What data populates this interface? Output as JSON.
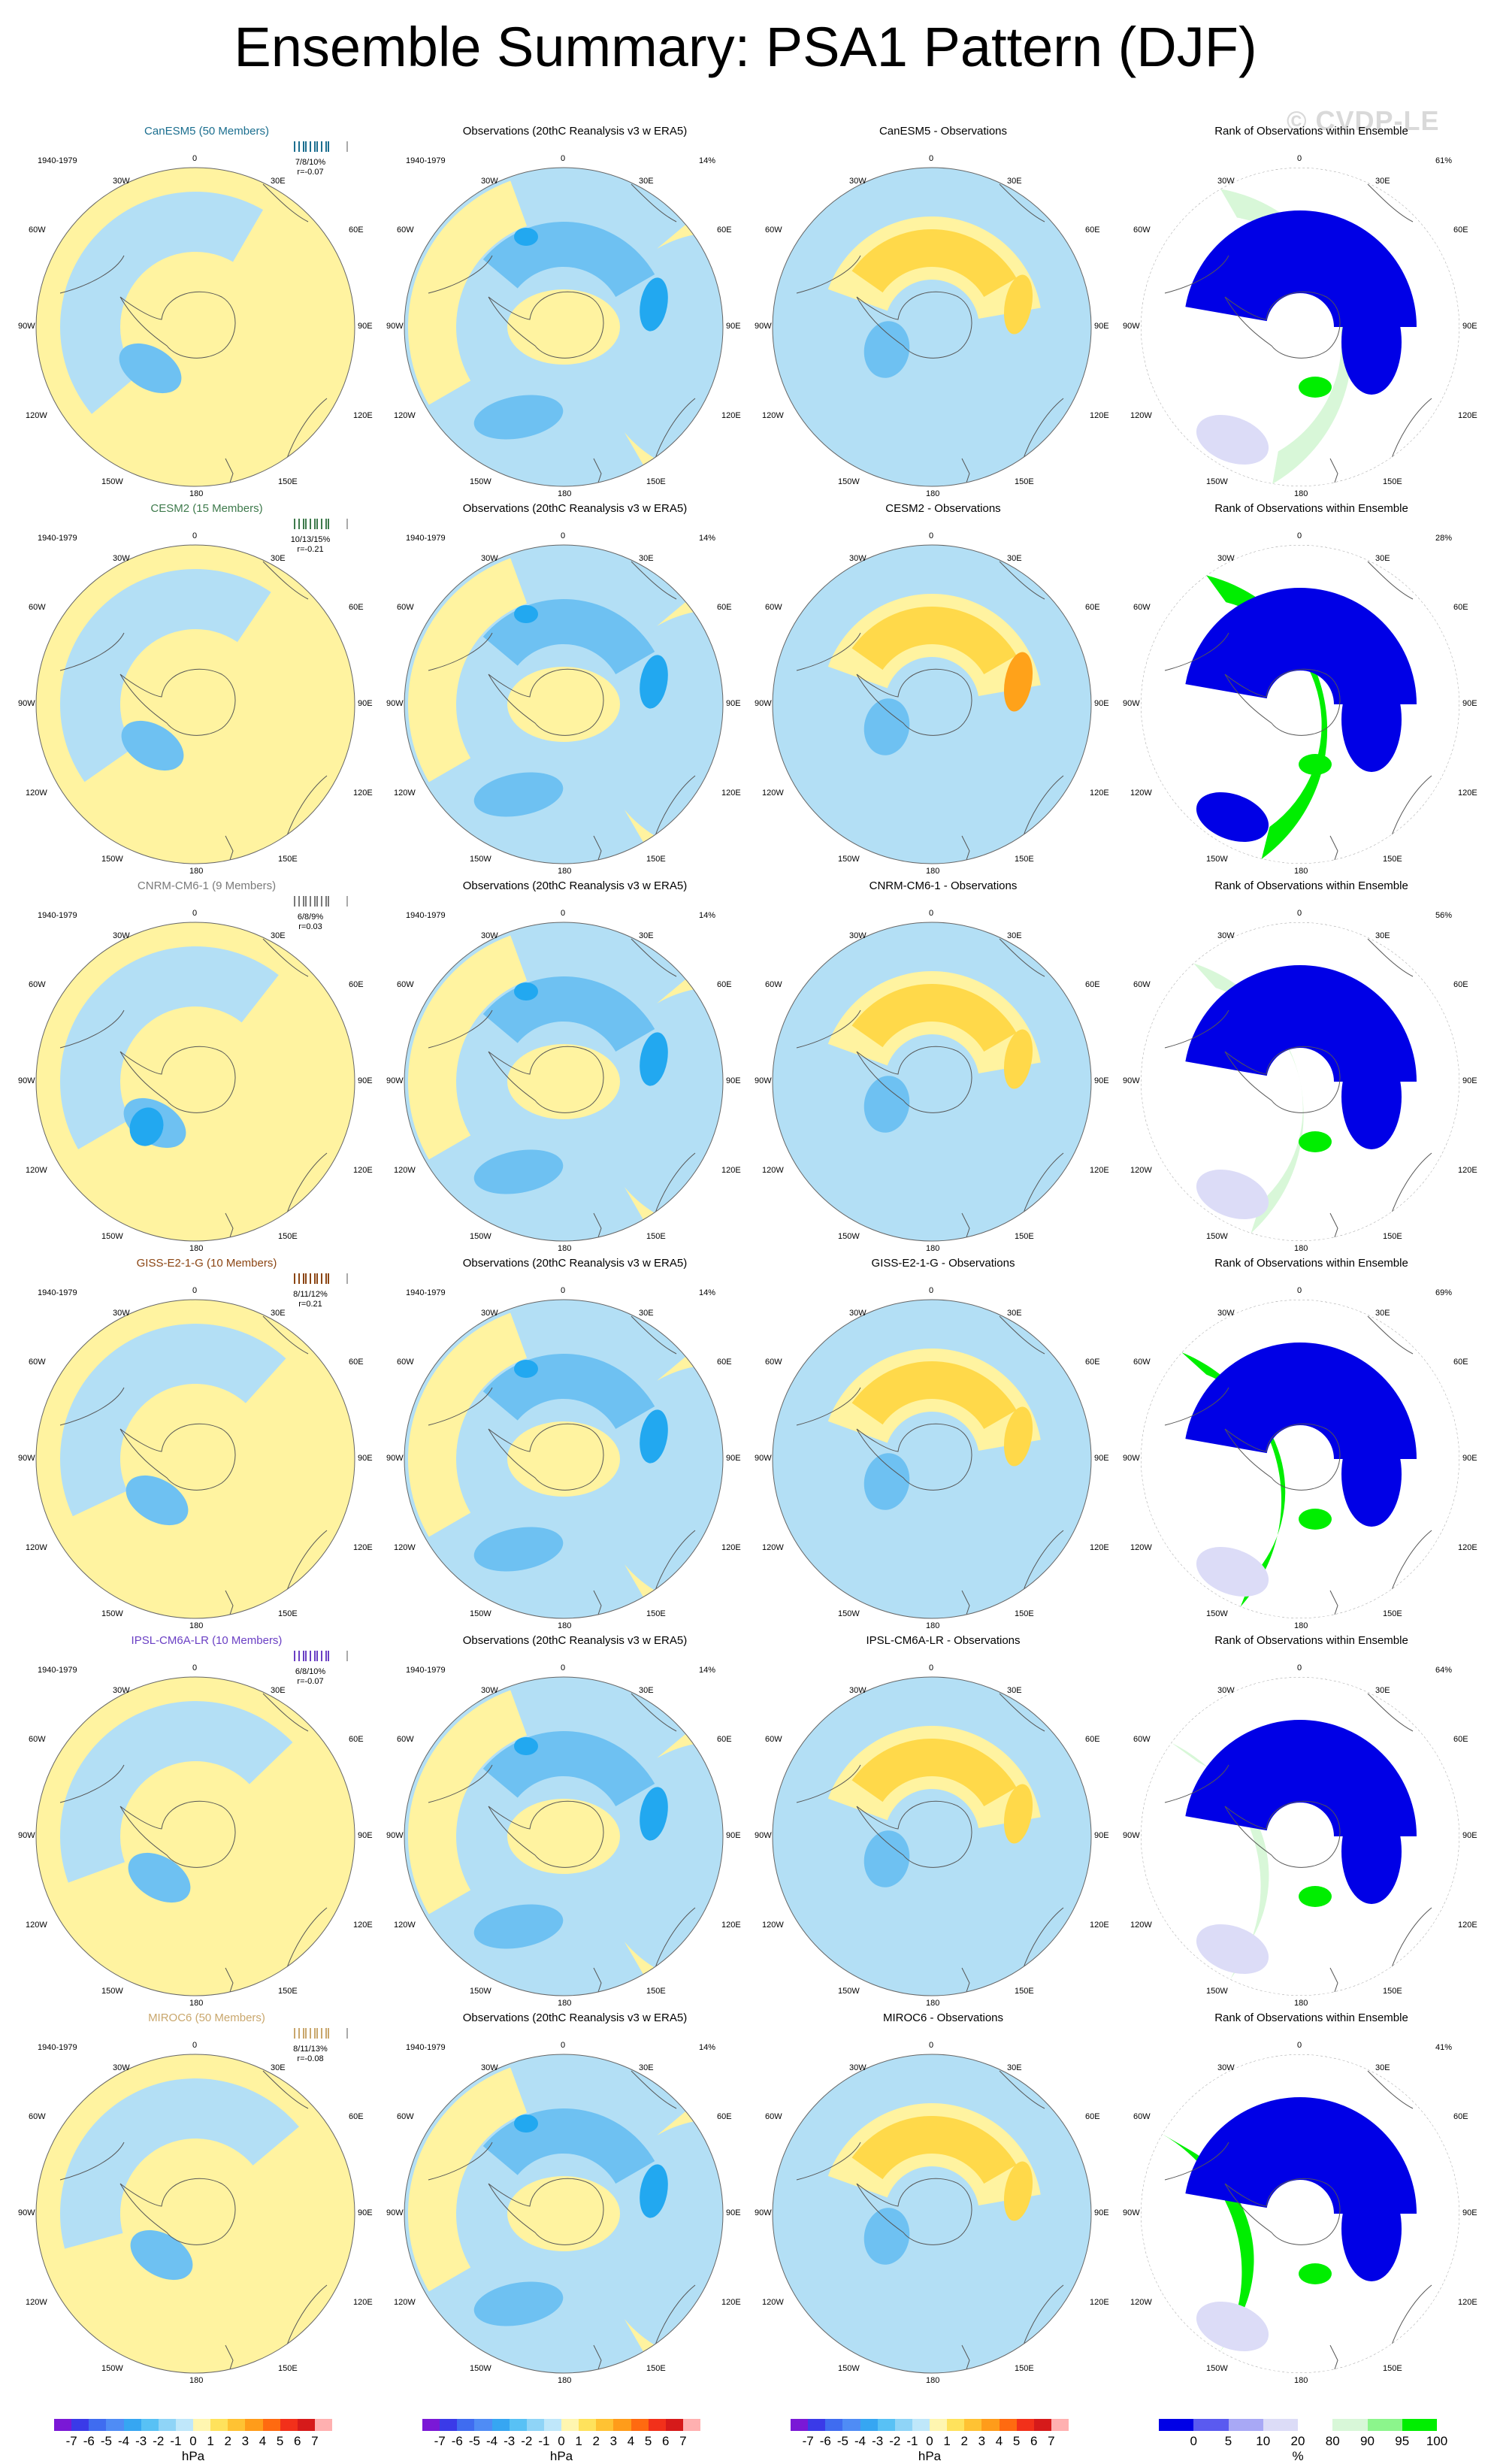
{
  "title": "Ensemble Summary: PSA1 Pattern (DJF)",
  "watermark": "© CVDP-LE",
  "period": "1940-1979",
  "lon_labels": {
    "top": "0",
    "tl": "30W",
    "tr": "30E",
    "ul": "60W",
    "ur": "60E",
    "l": "90W",
    "r": "90E",
    "ll": "120W",
    "lr": "120E",
    "bl": "150W",
    "br": "150E",
    "bottom": "180"
  },
  "obs_title": "Observations (20thC Reanalysis v3 w ERA5)",
  "obs_pct": "14%",
  "rank_title": "Rank of Observations within Ensemble",
  "colors": {
    "light_yellow": "#fff3a0",
    "yellow": "#ffd94a",
    "orange": "#ffa21a",
    "light_blue": "#b3dff5",
    "blue": "#6ec1f2",
    "deep_blue": "#22a8f0",
    "rank_blue": "#0000e6",
    "rank_lavender": "#dcdcf7",
    "rank_green": "#00ee00",
    "rank_lightgreen": "#d8f7d8"
  },
  "rows": [
    {
      "model": "CanESM5 (50 Members)",
      "model_color": "#1b6e8f",
      "stats1": "7/8/10%",
      "stats2": "r=-0.07",
      "diff_title": "CanESM5 - Observations",
      "rank_pct": "61%"
    },
    {
      "model": "CESM2 (15 Members)",
      "model_color": "#3e7a4c",
      "stats1": "10/13/15%",
      "stats2": "r=-0.21",
      "diff_title": "CESM2 - Observations",
      "rank_pct": "28%"
    },
    {
      "model": "CNRM-CM6-1 (9 Members)",
      "model_color": "#7a7a7a",
      "stats1": "6/8/9%",
      "stats2": "r=0.03",
      "diff_title": "CNRM-CM6-1 - Observations",
      "rank_pct": "56%"
    },
    {
      "model": "GISS-E2-1-G (10 Members)",
      "model_color": "#8b4513",
      "stats1": "8/11/12%",
      "stats2": "r=0.21",
      "diff_title": "GISS-E2-1-G - Observations",
      "rank_pct": "69%"
    },
    {
      "model": "IPSL-CM6A-LR (10 Members)",
      "model_color": "#6a3fc4",
      "stats1": "6/8/10%",
      "stats2": "r=-0.07",
      "diff_title": "IPSL-CM6A-LR - Observations",
      "rank_pct": "64%"
    },
    {
      "model": "MIROC6 (50 Members)",
      "model_color": "#c9a76d",
      "stats1": "8/11/13%",
      "stats2": "r=-0.08",
      "diff_title": "MIROC6 - Observations",
      "rank_pct": "41%"
    }
  ],
  "colorbar_hpa": {
    "ticks": [
      "-7",
      "-6",
      "-5",
      "-4",
      "-3",
      "-2",
      "-1",
      "0",
      "1",
      "2",
      "3",
      "4",
      "5",
      "6",
      "7"
    ],
    "colors": [
      "#7a18d6",
      "#3a3ae8",
      "#3f6cf0",
      "#4f8cf5",
      "#36a6f2",
      "#58c1f5",
      "#8fd4f7",
      "#bfe7fa",
      "#fff6b0",
      "#ffe25c",
      "#ffc233",
      "#ff9c1a",
      "#ff6a10",
      "#f2301a",
      "#d61a1a",
      "#ffb0b0"
    ],
    "unit": "hPa"
  },
  "colorbar_rank": {
    "ticks": [
      "0",
      "5",
      "10",
      "20",
      "80",
      "90",
      "95",
      "100"
    ],
    "colors": [
      "#0000e6",
      "#5a5af0",
      "#a8a8f5",
      "#dcdcf7",
      "#ffffff",
      "#d8f7d8",
      "#8cf58c",
      "#00ee00"
    ],
    "unit": "%"
  }
}
